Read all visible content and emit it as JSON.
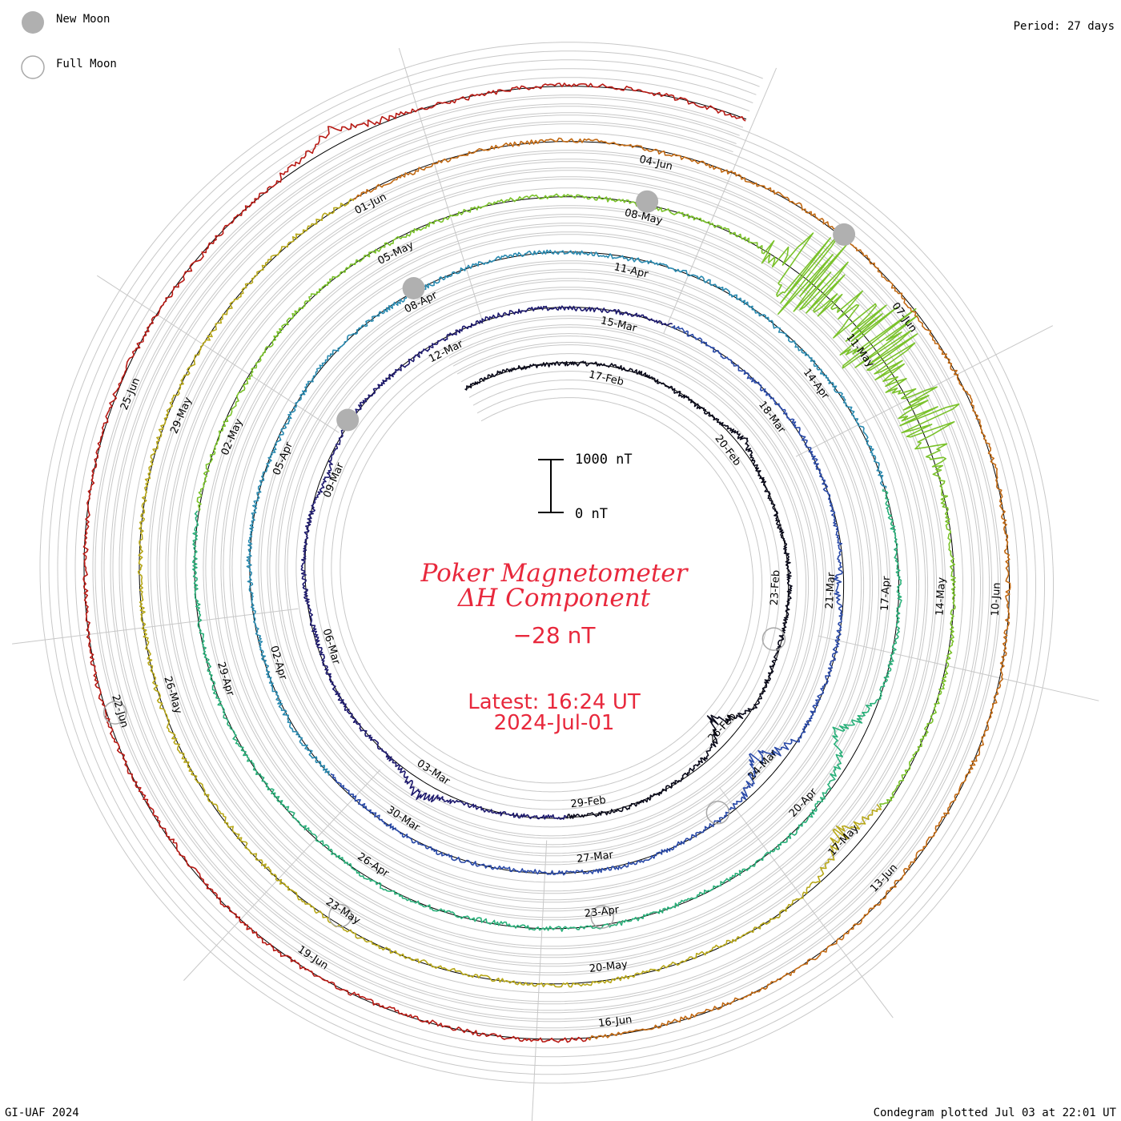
{
  "legend": {
    "new_moon_label": "New Moon",
    "full_moon_label": "Full Moon",
    "new_moon_color": "#b0b0b0",
    "full_moon_color": "#a8a8a8"
  },
  "period_label": "Period: 27 days",
  "footer": {
    "left": "GI-UAF 2024",
    "right": "Condegram plotted Jul 03 at 22:01 UT"
  },
  "title": {
    "line1": "Poker Magnetometer",
    "line2": "ΔH Component",
    "current_value": "−28 nT",
    "latest_time": "Latest: 16:24 UT",
    "latest_date": "2024-Jul-01",
    "color": "#e8283c"
  },
  "scale_bar": {
    "top_label": "1000 nT",
    "bottom_label": "0 nT"
  },
  "chart_data": {
    "type": "line",
    "subtype": "condegram-spiral",
    "period_days": 27,
    "start_date": "2024-02-14",
    "end_date": "2024-07-01",
    "spiral_colors": [
      "#0a0a1a",
      "#1e1a6e",
      "#2a4aa8",
      "#2a8ab0",
      "#2ab07a",
      "#7ac22a",
      "#b8a81a",
      "#c26a14",
      "#b81a14"
    ],
    "date_labels": [
      "17-Feb",
      "20-Feb",
      "23-Feb",
      "26-Feb",
      "29-Feb",
      "03-Mar",
      "06-Mar",
      "09-Mar",
      "12-Mar",
      "15-Mar",
      "18-Mar",
      "21-Mar",
      "24-Mar",
      "27-Mar",
      "30-Mar",
      "02-Apr",
      "05-Apr",
      "08-Apr",
      "11-Apr",
      "14-Apr",
      "17-Apr",
      "20-Apr",
      "23-Apr",
      "26-Apr",
      "29-Apr",
      "02-May",
      "05-May",
      "08-May",
      "11-May",
      "14-May",
      "17-May",
      "20-May",
      "23-May",
      "26-May",
      "29-May",
      "01-Jun",
      "04-Jun",
      "07-Jun",
      "10-Jun",
      "13-Jun",
      "16-Jun",
      "19-Jun",
      "22-Jun",
      "25-Jun"
    ],
    "new_moon_dates": [
      "2024-03-10",
      "2024-04-08",
      "2024-05-08",
      "2024-06-06"
    ],
    "full_moon_dates": [
      "2024-02-24",
      "2024-03-25",
      "2024-04-23",
      "2024-05-23",
      "2024-06-22"
    ],
    "disturbances": [
      {
        "date": "2024-02-20",
        "peak_nT": 150
      },
      {
        "date": "2024-02-26",
        "peak_nT": -600
      },
      {
        "date": "2024-03-03",
        "peak_nT": 450
      },
      {
        "date": "2024-03-09",
        "peak_nT": -120
      },
      {
        "date": "2024-03-21",
        "peak_nT": -250
      },
      {
        "date": "2024-03-24",
        "peak_nT": -650
      },
      {
        "date": "2024-04-19",
        "peak_nT": -600
      },
      {
        "date": "2024-05-10",
        "peak_nT": 1600
      },
      {
        "date": "2024-05-11",
        "peak_nT": 1500
      },
      {
        "date": "2024-05-12",
        "peak_nT": 900
      },
      {
        "date": "2024-05-17",
        "peak_nT": -550
      },
      {
        "date": "2024-06-28",
        "peak_nT": 350
      }
    ],
    "ylabel": "ΔH (nT)",
    "scale_nT": [
      0,
      1000
    ]
  }
}
